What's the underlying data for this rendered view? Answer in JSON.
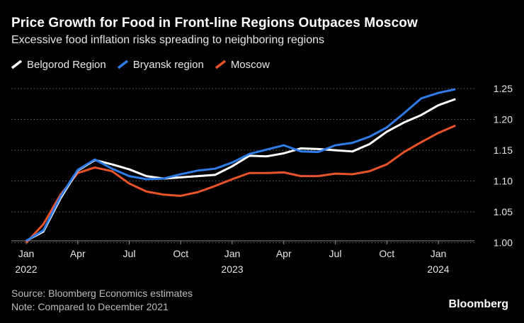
{
  "chart_data": {
    "type": "line",
    "title": "Price Growth for Food in Front-line Regions Outpaces Moscow",
    "subtitle": "Excessive food inflation risks spreading to neighboring regions",
    "xlabel": "",
    "ylabel": "",
    "ylim": [
      0.98,
      1.265
    ],
    "y_ticks": [
      "1.00",
      "1.05",
      "1.10",
      "1.15",
      "1.20",
      "1.25"
    ],
    "y_tick_values": [
      1.0,
      1.05,
      1.1,
      1.15,
      1.2,
      1.25
    ],
    "x_ticks": [
      {
        "month": 0,
        "label": "Jan",
        "year": "2022"
      },
      {
        "month": 3,
        "label": "Apr",
        "year": ""
      },
      {
        "month": 6,
        "label": "Jul",
        "year": ""
      },
      {
        "month": 9,
        "label": "Oct",
        "year": ""
      },
      {
        "month": 12,
        "label": "Jan",
        "year": "2023"
      },
      {
        "month": 15,
        "label": "Apr",
        "year": ""
      },
      {
        "month": 18,
        "label": "Jul",
        "year": ""
      },
      {
        "month": 21,
        "label": "Oct",
        "year": ""
      },
      {
        "month": 24,
        "label": "Jan",
        "year": "2024"
      }
    ],
    "x": [
      "2022-01",
      "2022-02",
      "2022-03",
      "2022-04",
      "2022-05",
      "2022-06",
      "2022-07",
      "2022-08",
      "2022-09",
      "2022-10",
      "2022-11",
      "2022-12",
      "2023-01",
      "2023-02",
      "2023-03",
      "2023-04",
      "2023-05",
      "2023-06",
      "2023-07",
      "2023-08",
      "2023-09",
      "2023-10",
      "2023-11",
      "2023-12",
      "2024-01",
      "2024-02"
    ],
    "series": [
      {
        "name": "Belgorod Region",
        "color": "#ffffff",
        "values": [
          1.003,
          1.018,
          1.072,
          1.117,
          1.134,
          1.127,
          1.119,
          1.108,
          1.104,
          1.106,
          1.108,
          1.11,
          1.124,
          1.141,
          1.14,
          1.145,
          1.153,
          1.152,
          1.15,
          1.148,
          1.16,
          1.18,
          1.195,
          1.207,
          1.223,
          1.233
        ]
      },
      {
        "name": "Bryansk region",
        "color": "#2f7ce8",
        "values": [
          1.003,
          1.02,
          1.075,
          1.118,
          1.135,
          1.12,
          1.108,
          1.103,
          1.104,
          1.111,
          1.117,
          1.12,
          1.13,
          1.144,
          1.151,
          1.158,
          1.148,
          1.147,
          1.158,
          1.162,
          1.172,
          1.187,
          1.21,
          1.234,
          1.243,
          1.249
        ]
      },
      {
        "name": "Moscow",
        "color": "#e8532a",
        "values": [
          1.0,
          1.03,
          1.078,
          1.113,
          1.122,
          1.116,
          1.096,
          1.083,
          1.078,
          1.076,
          1.082,
          1.092,
          1.103,
          1.113,
          1.113,
          1.114,
          1.108,
          1.108,
          1.112,
          1.111,
          1.116,
          1.127,
          1.147,
          1.163,
          1.178,
          1.19
        ]
      }
    ]
  },
  "footer": {
    "source": "Source: Bloomberg Economics estimates",
    "note": "Note: Compared to December 2021"
  },
  "brand": "Bloomberg"
}
